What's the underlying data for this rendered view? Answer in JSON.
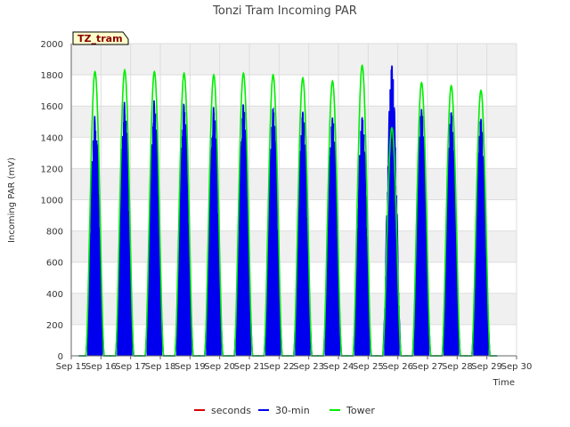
{
  "chart_data": {
    "type": "line",
    "title": "Tonzi Tram Incoming PAR",
    "site_badge": "TZ_tram",
    "xlabel": "Time",
    "ylabel": "Incoming PAR (mV)",
    "ylim": [
      0,
      2000
    ],
    "yticks": [
      0,
      200,
      400,
      600,
      800,
      1000,
      1200,
      1400,
      1600,
      1800,
      2000
    ],
    "xlim": [
      15,
      30
    ],
    "xticks": [
      {
        "value": 15,
        "label": "Sep 15"
      },
      {
        "value": 16,
        "label": "Sep 16"
      },
      {
        "value": 17,
        "label": "Sep 17"
      },
      {
        "value": 18,
        "label": "Sep 18"
      },
      {
        "value": 19,
        "label": "Sep 19"
      },
      {
        "value": 20,
        "label": "Sep 20"
      },
      {
        "value": 21,
        "label": "Sep 21"
      },
      {
        "value": 22,
        "label": "Sep 22"
      },
      {
        "value": 23,
        "label": "Sep 23"
      },
      {
        "value": 24,
        "label": "Sep 24"
      },
      {
        "value": 25,
        "label": "Sep 25"
      },
      {
        "value": 26,
        "label": "Sep 26"
      },
      {
        "value": 27,
        "label": "Sep 27"
      },
      {
        "value": 28,
        "label": "Sep 28"
      },
      {
        "value": 29,
        "label": "Sep 29"
      },
      {
        "value": 30,
        "label": "Sep 30"
      }
    ],
    "grid": true,
    "legend_position": "bottom",
    "series": [
      {
        "name": "seconds",
        "color": "#dd0000",
        "daily_peaks": []
      },
      {
        "name": "30-min",
        "color": "#0000ee",
        "days": [
          15.8,
          16.8,
          17.8,
          18.8,
          19.8,
          20.8,
          21.8,
          22.8,
          23.8,
          24.8,
          25.8,
          26.8,
          27.8,
          28.8
        ],
        "daily_peaks": [
          1540,
          1630,
          1640,
          1620,
          1600,
          1620,
          1590,
          1570,
          1530,
          1530,
          1860,
          1580,
          1560,
          1520
        ]
      },
      {
        "name": "Tower",
        "color": "#00ee00",
        "days": [
          15.8,
          16.8,
          17.8,
          18.8,
          19.8,
          20.8,
          21.8,
          22.8,
          23.8,
          24.8,
          25.8,
          26.8,
          27.8,
          28.8
        ],
        "daily_peaks": [
          1820,
          1830,
          1820,
          1810,
          1800,
          1810,
          1800,
          1780,
          1760,
          1860,
          1460,
          1750,
          1730,
          1700
        ]
      }
    ]
  }
}
